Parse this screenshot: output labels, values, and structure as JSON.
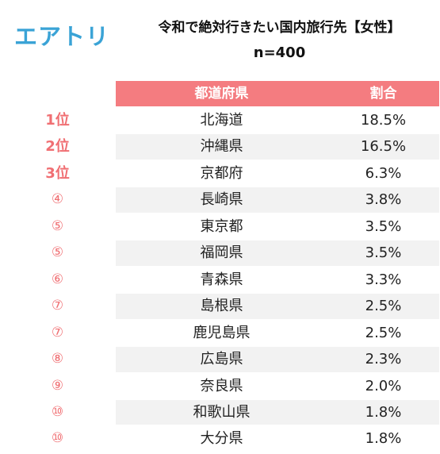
{
  "brand": {
    "logo_text": "エアトリ",
    "logo_color": "#3aa3d6"
  },
  "title": {
    "main": "令和で絶対行きたい国内旅行先【女性】",
    "sub": "n=400"
  },
  "table": {
    "header_color": "#f47c80",
    "headers": {
      "prefecture": "都道府県",
      "ratio": "割合"
    },
    "rows": [
      {
        "rank": "1位",
        "prefecture": "北海道",
        "ratio": "18.5%"
      },
      {
        "rank": "2位",
        "prefecture": "沖縄県",
        "ratio": "16.5%"
      },
      {
        "rank": "3位",
        "prefecture": "京都府",
        "ratio": "6.3%"
      },
      {
        "rank": "④",
        "prefecture": "長崎県",
        "ratio": "3.8%"
      },
      {
        "rank": "⑤",
        "prefecture": "東京都",
        "ratio": "3.5%"
      },
      {
        "rank": "⑤",
        "prefecture": "福岡県",
        "ratio": "3.5%"
      },
      {
        "rank": "⑥",
        "prefecture": "青森県",
        "ratio": "3.3%"
      },
      {
        "rank": "⑦",
        "prefecture": "島根県",
        "ratio": "2.5%"
      },
      {
        "rank": "⑦",
        "prefecture": "鹿児島県",
        "ratio": "2.5%"
      },
      {
        "rank": "⑧",
        "prefecture": "広島県",
        "ratio": "2.3%"
      },
      {
        "rank": "⑨",
        "prefecture": "奈良県",
        "ratio": "2.0%"
      },
      {
        "rank": "⑩",
        "prefecture": "和歌山県",
        "ratio": "1.8%"
      },
      {
        "rank": "⑩",
        "prefecture": "大分県",
        "ratio": "1.8%"
      }
    ]
  }
}
